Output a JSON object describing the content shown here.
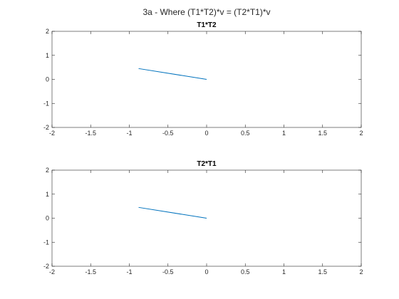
{
  "figure": {
    "title": "3a - Where (T1*T2)*v = (T2*T1)*v"
  },
  "chart_data": [
    {
      "type": "line",
      "title": "T1*T2",
      "xlabel": "",
      "ylabel": "",
      "xlim": [
        -2,
        2
      ],
      "ylim": [
        -2,
        2
      ],
      "xticks": [
        -2,
        -1.5,
        -1,
        -0.5,
        0,
        0.5,
        1,
        1.5,
        2
      ],
      "yticks": [
        -2,
        -1,
        0,
        1,
        2
      ],
      "xtick_labels": [
        "-2",
        "-1.5",
        "-1",
        "-0.5",
        "0",
        "0.5",
        "1",
        "1.5",
        "2"
      ],
      "ytick_labels": [
        "-2",
        "-1",
        "0",
        "1",
        "2"
      ],
      "grid": false,
      "series": [
        {
          "x": [
            0,
            -0.88
          ],
          "y": [
            0,
            0.45
          ],
          "color": "#0072BD"
        }
      ]
    },
    {
      "type": "line",
      "title": "T2*T1",
      "xlabel": "",
      "ylabel": "",
      "xlim": [
        -2,
        2
      ],
      "ylim": [
        -2,
        2
      ],
      "xticks": [
        -2,
        -1.5,
        -1,
        -0.5,
        0,
        0.5,
        1,
        1.5,
        2
      ],
      "yticks": [
        -2,
        -1,
        0,
        1,
        2
      ],
      "xtick_labels": [
        "-2",
        "-1.5",
        "-1",
        "-0.5",
        "0",
        "0.5",
        "1",
        "1.5",
        "2"
      ],
      "ytick_labels": [
        "-2",
        "-1",
        "0",
        "1",
        "2"
      ],
      "grid": false,
      "series": [
        {
          "x": [
            0,
            -0.88
          ],
          "y": [
            0,
            0.45
          ],
          "color": "#0072BD"
        }
      ]
    }
  ]
}
